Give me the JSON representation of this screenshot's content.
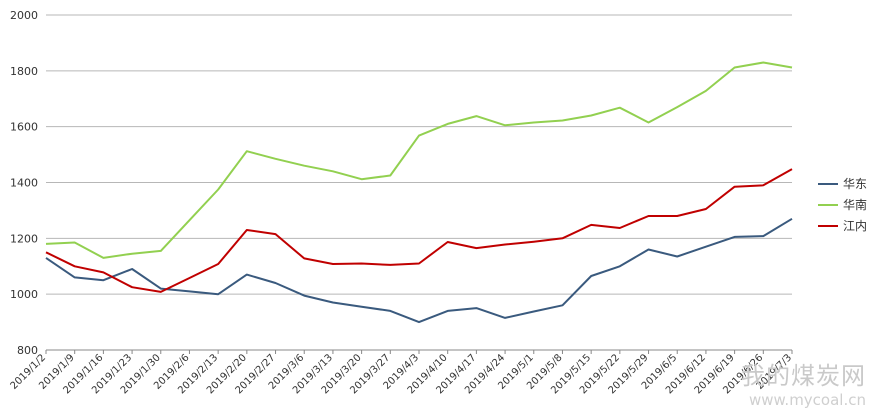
{
  "chart_data": {
    "type": "line",
    "title": "",
    "xlabel": "",
    "ylabel": "",
    "ylim": [
      800,
      2000
    ],
    "yticks": [
      800,
      1000,
      1200,
      1400,
      1600,
      1800,
      2000
    ],
    "grid": "horizontal",
    "legend_position": "right",
    "categories": [
      "2019/1/2",
      "2019/1/9",
      "2019/1/16",
      "2019/1/23",
      "2019/1/30",
      "2019/2/6",
      "2019/2/13",
      "2019/2/20",
      "2019/2/27",
      "2019/3/6",
      "2019/3/13",
      "2019/3/20",
      "2019/3/27",
      "2019/4/3",
      "2019/4/10",
      "2019/4/17",
      "2019/4/24",
      "2019/5/1",
      "2019/5/8",
      "2019/5/15",
      "2019/5/22",
      "2019/5/29",
      "2019/6/5",
      "2019/6/12",
      "2019/6/19",
      "2019/6/26",
      "2019/7/3"
    ],
    "series": [
      {
        "name": "华东",
        "color": "#3a5a7e",
        "values": [
          1130,
          1060,
          1050,
          1090,
          1020,
          1010,
          1000,
          1070,
          1040,
          995,
          970,
          955,
          940,
          900,
          940,
          950,
          915,
          938,
          960,
          1065,
          1100,
          1160,
          1135,
          1170,
          1205,
          1208,
          1270
        ]
      },
      {
        "name": "华南",
        "color": "#92d050",
        "values": [
          1180,
          1185,
          1130,
          1145,
          1155,
          1265,
          1375,
          1512,
          1485,
          1460,
          1440,
          1412,
          1425,
          1568,
          1610,
          1638,
          1605,
          1615,
          1622,
          1640,
          1668,
          1615,
          1670,
          1728,
          1812,
          1830,
          1812
        ]
      },
      {
        "name": "江内",
        "color": "#c00000",
        "values": [
          1150,
          1100,
          1078,
          1025,
          1008,
          1058,
          1108,
          1230,
          1215,
          1128,
          1108,
          1110,
          1105,
          1110,
          1187,
          1165,
          1178,
          1188,
          1200,
          1248,
          1237,
          1280,
          1280,
          1305,
          1385,
          1390,
          1448
        ]
      }
    ]
  },
  "watermark": {
    "title": "我的煤炭网",
    "url": "www.mycoal.cn"
  }
}
